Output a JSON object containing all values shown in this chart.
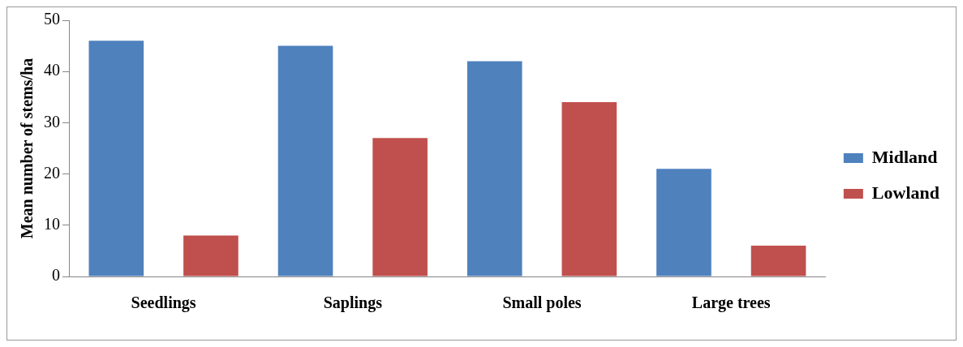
{
  "chart_data": {
    "type": "bar",
    "ylabel": "Mean number of stems/ha",
    "categories": [
      "Seedlings",
      "Saplings",
      "Small poles",
      "Large trees"
    ],
    "series": [
      {
        "name": "Midland",
        "color": "#4f81bd",
        "values": [
          46,
          45,
          42,
          21
        ]
      },
      {
        "name": "Lowland",
        "color": "#c0504d",
        "values": [
          8,
          27,
          34,
          6
        ]
      }
    ],
    "ylim": [
      0,
      50
    ],
    "yticks": [
      0,
      10,
      20,
      30,
      40,
      50
    ],
    "grid": false,
    "legend": "right"
  }
}
